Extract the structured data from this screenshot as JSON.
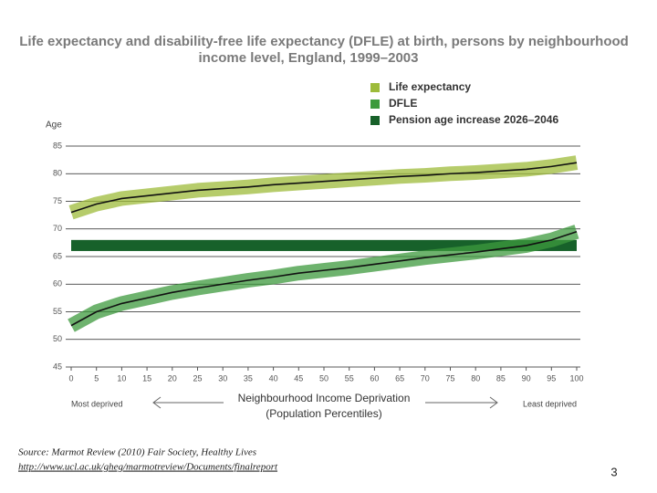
{
  "chart_data": {
    "type": "line",
    "title_lines": [
      "Life expectancy and disability-free life expectancy (DFLE) at birth, persons by neighbourhood",
      "income level, England, 1999–2003"
    ],
    "y_label": "Age",
    "x_label_lines": [
      "Neighbourhood Income Deprivation",
      "(Population Percentiles)"
    ],
    "annotations": [
      "Most deprived",
      "Least deprived"
    ],
    "x": [
      0,
      5,
      10,
      15,
      20,
      25,
      30,
      35,
      40,
      45,
      50,
      55,
      60,
      65,
      70,
      75,
      80,
      85,
      90,
      95,
      100
    ],
    "series": [
      {
        "name": "Life expectancy",
        "color": "#9dbb3a",
        "values": [
          73,
          74.5,
          75.5,
          76,
          76.5,
          77,
          77.3,
          77.6,
          78,
          78.3,
          78.6,
          78.9,
          79.2,
          79.5,
          79.7,
          80,
          80.2,
          80.5,
          80.8,
          81.3,
          82
        ]
      },
      {
        "name": "DFLE",
        "color": "#3d9a3d",
        "values": [
          52.5,
          55,
          56.5,
          57.5,
          58.5,
          59.3,
          60,
          60.7,
          61.3,
          62,
          62.5,
          63,
          63.6,
          64.2,
          64.8,
          65.3,
          65.8,
          66.4,
          67,
          68,
          69.5
        ]
      }
    ],
    "band": {
      "name": "Pension age increase 2026–2046",
      "color": "#17612a",
      "range": [
        66,
        68
      ]
    },
    "xlim": [
      0,
      100
    ],
    "xticks": [
      0,
      5,
      10,
      15,
      20,
      25,
      30,
      35,
      40,
      45,
      50,
      55,
      60,
      65,
      70,
      75,
      80,
      85,
      90,
      95,
      100
    ],
    "ylim": [
      45,
      85
    ],
    "yticks": [
      45,
      50,
      55,
      60,
      65,
      70,
      75,
      80,
      85
    ],
    "grid": true
  },
  "footer": {
    "source": "Source: Marmot Review (2010) Fair Society, Healthy Lives",
    "url": "http://www.ucl.ac.uk/gheg/marmotreview/Documents/finalreport",
    "page_number": "3"
  }
}
